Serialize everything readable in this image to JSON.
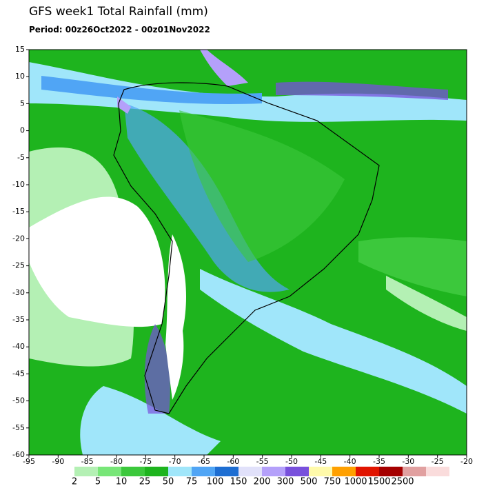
{
  "header": {
    "title": "GFS week1 Total Rainfall (mm)",
    "period": "Period: 00z26Oct2022 - 00z01Nov2022"
  },
  "map": {
    "xlim": [
      -95,
      -20
    ],
    "ylim": [
      -60,
      15
    ],
    "xticks": [
      -95,
      -90,
      -85,
      -80,
      -75,
      -70,
      -65,
      -60,
      -55,
      -50,
      -45,
      -40,
      -35,
      -30,
      -25,
      -20
    ],
    "yticks": [
      15,
      10,
      5,
      0,
      -5,
      -10,
      -15,
      -20,
      -25,
      -30,
      -35,
      -40,
      -45,
      -50,
      -55,
      -60
    ]
  },
  "legend": {
    "labels": [
      2,
      5,
      10,
      25,
      50,
      75,
      100,
      150,
      200,
      300,
      500,
      750,
      1000,
      1500,
      2500
    ],
    "colors": [
      "#b4f0b4",
      "#78e678",
      "#3cc83c",
      "#1eb41e",
      "#a0e6fa",
      "#50a5f5",
      "#1e6ed2",
      "#e1e1fa",
      "#b4a0fa",
      "#7850dc",
      "#fffaaa",
      "#ffa000",
      "#e11400",
      "#a50000",
      "#e1a0a0",
      "#fadcdc"
    ]
  }
}
